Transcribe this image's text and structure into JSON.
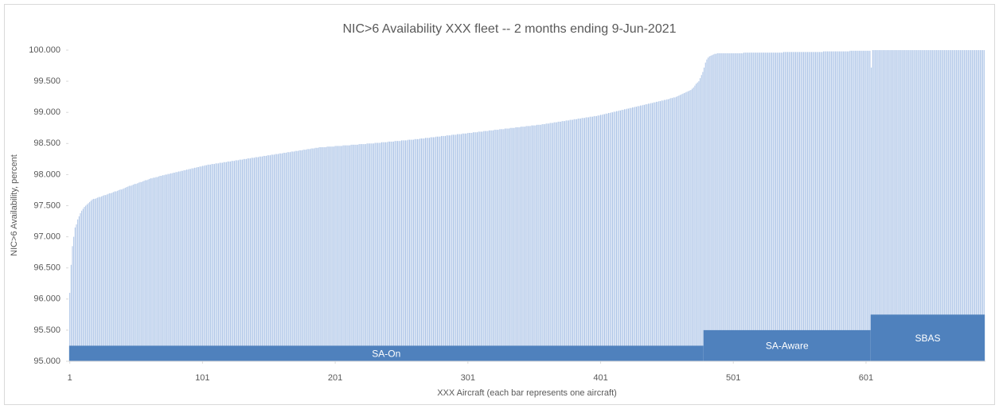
{
  "chart_data": {
    "type": "bar",
    "title": "NIC>6 Availability XXX fleet -- 2 months ending 9-Jun-2021",
    "y_label": "NIC>6 Availability, percent",
    "x_label": "XXX Aircraft (each bar represents one aircraft)",
    "color": "#a9c2e6",
    "region_color": "#4f81bd",
    "ylim": [
      95,
      100
    ],
    "yticks": [
      {
        "value": 95,
        "label": "95.000"
      },
      {
        "value": 95.5,
        "label": "95.500"
      },
      {
        "value": 96,
        "label": "96.000"
      },
      {
        "value": 96.5,
        "label": "96.500"
      },
      {
        "value": 97,
        "label": "97.000"
      },
      {
        "value": 97.5,
        "label": "97.500"
      },
      {
        "value": 98,
        "label": "98.000"
      },
      {
        "value": 98.5,
        "label": "98.500"
      },
      {
        "value": 99,
        "label": "99.000"
      },
      {
        "value": 99.5,
        "label": "99.500"
      },
      {
        "value": 100,
        "label": "100.000"
      }
    ],
    "xlim": [
      0,
      691
    ],
    "xticks": [
      1,
      101,
      201,
      301,
      401,
      501,
      601
    ],
    "regions": [
      {
        "name": "SA-On",
        "start": 1,
        "end": 478,
        "value": 95.25
      },
      {
        "name": "SA-Aware",
        "start": 479,
        "end": 604,
        "value": 95.5
      },
      {
        "name": "SBAS",
        "start": 605,
        "end": 690,
        "value": 95.75
      }
    ],
    "values": [
      96.1,
      96.55,
      96.85,
      97.0,
      97.15,
      97.2,
      97.28,
      97.33,
      97.38,
      97.42,
      97.45,
      97.48,
      97.5,
      97.52,
      97.54,
      97.56,
      97.58,
      97.6,
      97.61,
      97.61,
      97.62,
      97.63,
      97.64,
      97.64,
      97.65,
      97.66,
      97.67,
      97.67,
      97.68,
      97.69,
      97.7,
      97.7,
      97.71,
      97.72,
      97.73,
      97.73,
      97.74,
      97.75,
      97.76,
      97.76,
      97.77,
      97.78,
      97.79,
      97.8,
      97.81,
      97.82,
      97.82,
      97.83,
      97.84,
      97.85,
      97.85,
      97.86,
      97.87,
      97.88,
      97.88,
      97.89,
      97.9,
      97.91,
      97.91,
      97.92,
      97.93,
      97.94,
      97.94,
      97.95,
      97.95,
      97.96,
      97.96,
      97.97,
      97.98,
      97.98,
      97.99,
      97.99,
      98.0,
      98.0,
      98.01,
      98.01,
      98.02,
      98.02,
      98.03,
      98.03,
      98.04,
      98.04,
      98.05,
      98.05,
      98.06,
      98.06,
      98.07,
      98.07,
      98.08,
      98.08,
      98.09,
      98.09,
      98.1,
      98.1,
      98.11,
      98.11,
      98.12,
      98.12,
      98.13,
      98.13,
      98.14,
      98.14,
      98.15,
      98.15,
      98.16,
      98.16,
      98.16,
      98.17,
      98.17,
      98.17,
      98.18,
      98.18,
      98.18,
      98.19,
      98.19,
      98.19,
      98.2,
      98.2,
      98.2,
      98.21,
      98.21,
      98.21,
      98.22,
      98.22,
      98.22,
      98.23,
      98.23,
      98.23,
      98.24,
      98.24,
      98.24,
      98.25,
      98.25,
      98.25,
      98.26,
      98.26,
      98.26,
      98.27,
      98.27,
      98.27,
      98.28,
      98.28,
      98.28,
      98.29,
      98.29,
      98.29,
      98.3,
      98.3,
      98.3,
      98.31,
      98.31,
      98.31,
      98.32,
      98.32,
      98.32,
      98.33,
      98.33,
      98.33,
      98.34,
      98.34,
      98.34,
      98.35,
      98.35,
      98.35,
      98.36,
      98.36,
      98.36,
      98.37,
      98.37,
      98.37,
      98.38,
      98.38,
      98.38,
      98.39,
      98.39,
      98.39,
      98.4,
      98.4,
      98.4,
      98.41,
      98.41,
      98.41,
      98.42,
      98.42,
      98.42,
      98.43,
      98.43,
      98.43,
      98.44,
      98.44,
      98.44,
      98.44,
      98.44,
      98.44,
      98.45,
      98.45,
      98.45,
      98.45,
      98.45,
      98.45,
      98.46,
      98.46,
      98.46,
      98.46,
      98.46,
      98.46,
      98.47,
      98.47,
      98.47,
      98.47,
      98.47,
      98.47,
      98.48,
      98.48,
      98.48,
      98.48,
      98.48,
      98.48,
      98.49,
      98.49,
      98.49,
      98.49,
      98.49,
      98.49,
      98.5,
      98.5,
      98.5,
      98.5,
      98.5,
      98.5,
      98.51,
      98.51,
      98.51,
      98.51,
      98.51,
      98.52,
      98.52,
      98.52,
      98.52,
      98.52,
      98.53,
      98.53,
      98.53,
      98.53,
      98.53,
      98.54,
      98.54,
      98.54,
      98.54,
      98.54,
      98.55,
      98.55,
      98.55,
      98.55,
      98.55,
      98.56,
      98.56,
      98.56,
      98.56,
      98.56,
      98.57,
      98.57,
      98.57,
      98.57,
      98.58,
      98.58,
      98.58,
      98.58,
      98.59,
      98.59,
      98.59,
      98.59,
      98.6,
      98.6,
      98.6,
      98.6,
      98.61,
      98.61,
      98.61,
      98.61,
      98.62,
      98.62,
      98.62,
      98.62,
      98.63,
      98.63,
      98.63,
      98.63,
      98.64,
      98.64,
      98.64,
      98.64,
      98.65,
      98.65,
      98.65,
      98.65,
      98.66,
      98.66,
      98.66,
      98.66,
      98.67,
      98.67,
      98.67,
      98.67,
      98.68,
      98.68,
      98.68,
      98.68,
      98.69,
      98.69,
      98.69,
      98.69,
      98.7,
      98.7,
      98.7,
      98.7,
      98.71,
      98.71,
      98.71,
      98.71,
      98.72,
      98.72,
      98.72,
      98.72,
      98.73,
      98.73,
      98.73,
      98.73,
      98.74,
      98.74,
      98.74,
      98.74,
      98.75,
      98.75,
      98.75,
      98.75,
      98.76,
      98.76,
      98.76,
      98.76,
      98.77,
      98.77,
      98.77,
      98.77,
      98.78,
      98.78,
      98.78,
      98.78,
      98.79,
      98.79,
      98.79,
      98.79,
      98.8,
      98.8,
      98.8,
      98.8,
      98.81,
      98.81,
      98.81,
      98.82,
      98.82,
      98.82,
      98.83,
      98.83,
      98.83,
      98.84,
      98.84,
      98.84,
      98.85,
      98.85,
      98.85,
      98.86,
      98.86,
      98.86,
      98.87,
      98.87,
      98.87,
      98.88,
      98.88,
      98.88,
      98.89,
      98.89,
      98.89,
      98.9,
      98.9,
      98.9,
      98.91,
      98.91,
      98.91,
      98.92,
      98.92,
      98.92,
      98.93,
      98.93,
      98.93,
      98.94,
      98.94,
      98.94,
      98.95,
      98.95,
      98.96,
      98.96,
      98.97,
      98.97,
      98.98,
      98.98,
      98.99,
      98.99,
      99.0,
      99.0,
      99.01,
      99.01,
      99.02,
      99.02,
      99.03,
      99.03,
      99.04,
      99.04,
      99.05,
      99.05,
      99.06,
      99.06,
      99.07,
      99.07,
      99.08,
      99.08,
      99.09,
      99.09,
      99.1,
      99.1,
      99.11,
      99.11,
      99.12,
      99.12,
      99.13,
      99.13,
      99.14,
      99.14,
      99.15,
      99.15,
      99.16,
      99.16,
      99.17,
      99.17,
      99.18,
      99.18,
      99.19,
      99.19,
      99.2,
      99.2,
      99.21,
      99.21,
      99.22,
      99.23,
      99.23,
      99.24,
      99.24,
      99.25,
      99.26,
      99.27,
      99.28,
      99.29,
      99.3,
      99.31,
      99.32,
      99.33,
      99.34,
      99.35,
      99.36,
      99.38,
      99.4,
      99.43,
      99.46,
      99.48,
      99.5,
      99.55,
      99.6,
      99.65,
      99.72,
      99.8,
      99.85,
      99.88,
      99.9,
      99.91,
      99.92,
      99.93,
      99.94,
      99.94,
      99.95,
      99.95,
      99.95,
      99.95,
      99.95,
      99.95,
      99.95,
      99.95,
      99.95,
      99.95,
      99.95,
      99.95,
      99.95,
      99.95,
      99.95,
      99.95,
      99.95,
      99.95,
      99.95,
      99.95,
      99.96,
      99.96,
      99.96,
      99.96,
      99.96,
      99.96,
      99.96,
      99.96,
      99.96,
      99.96,
      99.96,
      99.96,
      99.96,
      99.96,
      99.96,
      99.96,
      99.96,
      99.96,
      99.96,
      99.96,
      99.96,
      99.96,
      99.96,
      99.96,
      99.96,
      99.96,
      99.96,
      99.96,
      99.96,
      99.96,
      99.97,
      99.97,
      99.97,
      99.97,
      99.97,
      99.97,
      99.97,
      99.97,
      99.97,
      99.97,
      99.97,
      99.97,
      99.97,
      99.97,
      99.97,
      99.97,
      99.97,
      99.97,
      99.97,
      99.97,
      99.97,
      99.97,
      99.97,
      99.97,
      99.97,
      99.97,
      99.97,
      99.97,
      99.97,
      99.97,
      99.98,
      99.98,
      99.98,
      99.98,
      99.98,
      99.98,
      99.98,
      99.98,
      99.98,
      99.98,
      99.98,
      99.98,
      99.98,
      99.98,
      99.98,
      99.98,
      99.98,
      99.98,
      99.98,
      99.98,
      99.99,
      99.99,
      99.99,
      99.99,
      99.99,
      99.99,
      99.99,
      99.99,
      99.99,
      99.99,
      99.99,
      99.99,
      99.99,
      99.99,
      99.99,
      99.99,
      99.72,
      100,
      100,
      100,
      100,
      100,
      100,
      100,
      100,
      100,
      100,
      100,
      100,
      100,
      100,
      100,
      100,
      100,
      100,
      100,
      100,
      100,
      100,
      100,
      100,
      100,
      100,
      100,
      100,
      100,
      100,
      100,
      100,
      100,
      100,
      100,
      100,
      100,
      100,
      100,
      100,
      100,
      100,
      100,
      100,
      100,
      100,
      100,
      100,
      100,
      100,
      100,
      100,
      100,
      100,
      100,
      100,
      100,
      100,
      100,
      100,
      100,
      100,
      100,
      100,
      100,
      100,
      100,
      100,
      100,
      100,
      100,
      100,
      100,
      100,
      100,
      100,
      100,
      100,
      100,
      100,
      100,
      100,
      100,
      100,
      100
    ]
  }
}
